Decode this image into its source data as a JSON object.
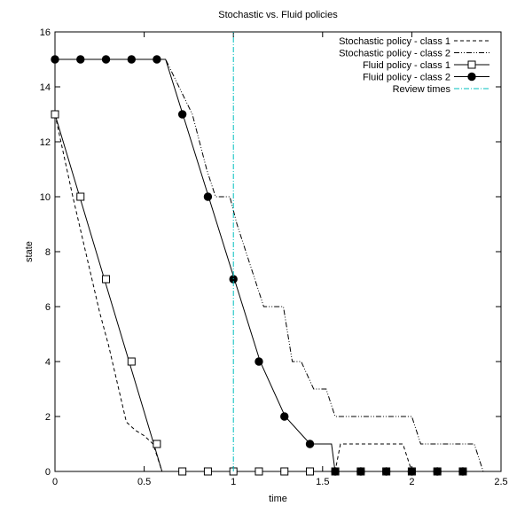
{
  "chart_data": {
    "type": "line",
    "title": "Stochastic vs. Fluid policies",
    "xlabel": "time",
    "ylabel": "state",
    "xlim": [
      0,
      2.5
    ],
    "ylim": [
      0,
      16
    ],
    "xticks": [
      0,
      0.5,
      1,
      1.5,
      2,
      2.5
    ],
    "xtick_labels": [
      "0",
      "0.5",
      "1",
      "1.5",
      "2",
      "2.5"
    ],
    "yticks": [
      0,
      2,
      4,
      6,
      8,
      10,
      12,
      14,
      16
    ],
    "ytick_labels": [
      "0",
      "2",
      "4",
      "6",
      "8",
      "10",
      "12",
      "14",
      "16"
    ],
    "grid": false,
    "legend_position": "top-right",
    "series": [
      {
        "name": "Stochastic policy - class 1",
        "style": "dashed",
        "marker": "none",
        "color": "#000000",
        "x": [
          0,
          0.05,
          0.1,
          0.15,
          0.2,
          0.25,
          0.3,
          0.35,
          0.4,
          0.45,
          0.5,
          0.55,
          0.6,
          0.6,
          1.57,
          1.57,
          1.6,
          1.95,
          2.0,
          2.0,
          2.4
        ],
        "y": [
          13,
          11.5,
          10,
          8.6,
          7.2,
          5.8,
          4.6,
          3.2,
          1.8,
          1.5,
          1.3,
          1.0,
          0,
          0,
          0,
          0,
          1,
          1,
          0,
          0,
          0
        ]
      },
      {
        "name": "Stochastic policy - class 2",
        "style": "dash-dot-dot",
        "marker": "none",
        "color": "#000000",
        "x": [
          0,
          0.62,
          0.77,
          0.85,
          0.9,
          0.98,
          1.02,
          1.12,
          1.17,
          1.28,
          1.33,
          1.38,
          1.45,
          1.52,
          1.57,
          1.6,
          2.0,
          2.05,
          2.35,
          2.4
        ],
        "y": [
          15,
          15,
          13,
          11,
          10,
          10,
          9,
          7,
          6,
          6,
          4,
          4,
          3,
          3,
          2,
          2,
          2,
          1,
          1,
          0
        ]
      },
      {
        "name": "Fluid policy - class 1",
        "style": "solid",
        "marker": "open-square",
        "color": "#000000",
        "x": [
          0,
          0.6,
          2.3
        ],
        "y": [
          13,
          0,
          0
        ],
        "markers_x": [
          0,
          0.143,
          0.286,
          0.429,
          0.571,
          0.714,
          0.857,
          1.0,
          1.143,
          1.286,
          1.429,
          1.571,
          1.714,
          1.857,
          2.0,
          2.143,
          2.286
        ],
        "markers_y": [
          13,
          10,
          7,
          4,
          1,
          0,
          0,
          0,
          0,
          0,
          0,
          0,
          0,
          0,
          0,
          0,
          0
        ]
      },
      {
        "name": "Fluid policy - class 2",
        "style": "solid",
        "marker": "filled-circle",
        "color": "#000000",
        "x": [
          0,
          0.62,
          1.15,
          1.15,
          1.29,
          1.29,
          1.43,
          1.43,
          1.55,
          1.57,
          2.3
        ],
        "y": [
          15,
          15,
          4,
          4,
          2,
          2,
          1,
          1,
          1,
          0,
          0
        ],
        "markers_x": [
          0,
          0.143,
          0.286,
          0.429,
          0.571,
          0.714,
          0.857,
          1.0,
          1.143,
          1.286,
          1.429,
          1.571,
          1.714,
          1.857,
          2.0,
          2.143,
          2.286
        ],
        "markers_y": [
          15,
          15,
          15,
          15,
          15,
          13,
          10,
          7,
          4,
          2,
          1,
          0,
          0,
          0,
          0,
          0,
          0
        ]
      },
      {
        "name": "Review times",
        "style": "dash-dot",
        "marker": "none",
        "color": "#00bfbf",
        "x": [
          1,
          1
        ],
        "y": [
          0,
          16
        ]
      }
    ]
  }
}
